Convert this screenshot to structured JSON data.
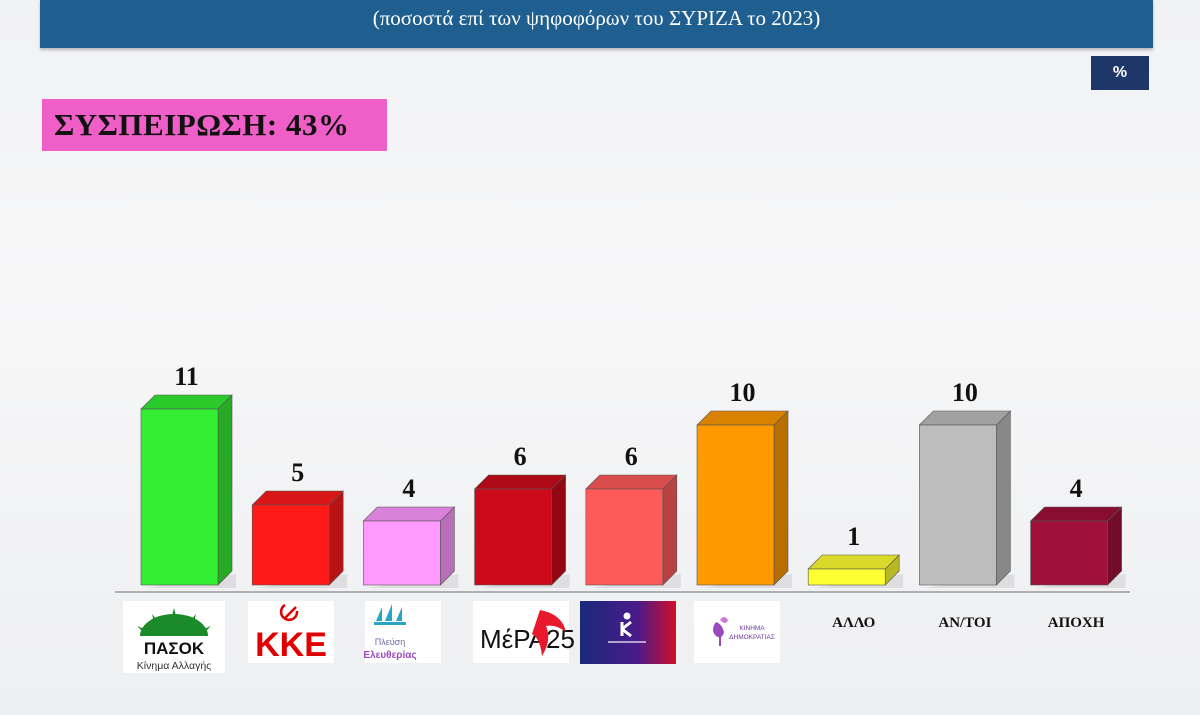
{
  "header": {
    "subtitle": "(ποσοστά επί των ψηφοφόρων του ΣΥΡΙΖΑ το 2023)"
  },
  "unit_badge": "%",
  "cohesion_label": "ΣΥΣΠΕΙΡΩΣΗ: 43%",
  "chart_data": {
    "type": "bar",
    "title": "",
    "subtitle": "(ποσοστά επί των ψηφοφόρων του ΣΥΡΙΖΑ το 2023)",
    "xlabel": "",
    "ylabel": "",
    "unit": "%",
    "ylim": [
      0,
      12
    ],
    "grid": false,
    "legend": "none",
    "categories": [
      "ΠΑΣΟΚ",
      "ΚΚΕ",
      "Πλεύση Ελευθερίας",
      "ΜέΡΑ25",
      "Κ",
      "Κίνημα Δημοκρατίας",
      "ΑΛΛΟ",
      "ΑΝ/ΤΟΙ",
      "ΑΠΟΧΗ"
    ],
    "values": [
      11,
      5,
      4,
      6,
      6,
      10,
      1,
      10,
      4
    ],
    "colors": [
      "#33ee33",
      "#ff1a1a",
      "#ff99ff",
      "#cc0a1a",
      "#ff5a5a",
      "#ff9900",
      "#ffff33",
      "#bdbdbd",
      "#a0103a"
    ],
    "category_labels_text": [
      "",
      "",
      "",
      "",
      "",
      "",
      "ΑΛΛΟ",
      "ΑΝ/ΤΟΙ",
      "ΑΠΟΧΗ"
    ]
  },
  "logos": {
    "pasok": {
      "name": "ΠΑΣΟΚ",
      "tagline": "Κίνημα Αλλαγής",
      "icon": "pasok-sun-icon"
    },
    "kke": {
      "name": "ΚΚΕ",
      "icon": "hammer-sickle-icon"
    },
    "plefsi": {
      "line1": "Πλεύση",
      "line2": "Ελευθερίας",
      "icon": "ship-sails-icon"
    },
    "mera25": {
      "name": "ΜέΡΑ25",
      "icon": "swallow-icon"
    },
    "k_party": {
      "icon": "k-logo-icon"
    },
    "kinima": {
      "line1": "ΚΙΝΗΜΑ",
      "line2": "ΔΗΜΟΚΡΑΤΙΑΣ",
      "icon": "flower-icon"
    }
  }
}
